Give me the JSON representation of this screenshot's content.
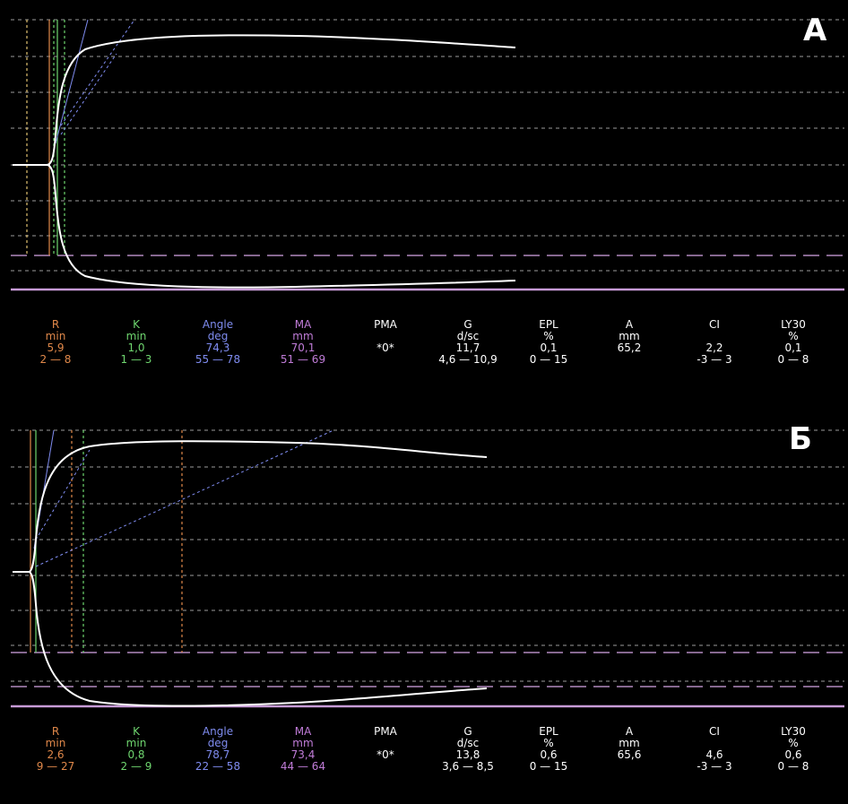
{
  "colors": {
    "R": "#e0884a",
    "K": "#6fd66f",
    "Angle": "#7f8cf0",
    "MA": "#c07cd8",
    "default": "#ffffff",
    "curve": "#ffffff",
    "grid": "#cfcfcf",
    "baseline": "#c79bd6"
  },
  "panels": [
    {
      "label": "А",
      "parameters": [
        {
          "name": "R",
          "unit": "min",
          "value": "5,9",
          "range": "2 — 8",
          "color_key": "R"
        },
        {
          "name": "K",
          "unit": "min",
          "value": "1,0",
          "range": "1 — 3",
          "color_key": "K"
        },
        {
          "name": "Angle",
          "unit": "deg",
          "value": "74,3",
          "range": "55 — 78",
          "color_key": "Angle"
        },
        {
          "name": "MA",
          "unit": "mm",
          "value": "70,1",
          "range": "51 — 69",
          "color_key": "MA"
        },
        {
          "name": "PMA",
          "unit": "",
          "value": "*0*",
          "range": "",
          "color_key": "default"
        },
        {
          "name": "G",
          "unit": "d/sc",
          "value": "11,7",
          "range": "4,6 — 10,9",
          "color_key": "default"
        },
        {
          "name": "EPL",
          "unit": "%",
          "value": "0,1",
          "range": "0 — 15",
          "color_key": "default"
        },
        {
          "name": "A",
          "unit": "mm",
          "value": "65,2",
          "range": "",
          "color_key": "default"
        },
        {
          "name": "CI",
          "unit": "",
          "value": "2,2",
          "range": "-3 — 3",
          "color_key": "default"
        },
        {
          "name": "LY30",
          "unit": "%",
          "value": "0,1",
          "range": "0 — 8",
          "color_key": "default"
        }
      ]
    },
    {
      "label": "Б",
      "parameters": [
        {
          "name": "R",
          "unit": "min",
          "value": "2,6",
          "range": "9 — 27",
          "color_key": "R"
        },
        {
          "name": "K",
          "unit": "min",
          "value": "0,8",
          "range": "2 — 9",
          "color_key": "K"
        },
        {
          "name": "Angle",
          "unit": "deg",
          "value": "78,7",
          "range": "22 — 58",
          "color_key": "Angle"
        },
        {
          "name": "MA",
          "unit": "mm",
          "value": "73,4",
          "range": "44 — 64",
          "color_key": "MA"
        },
        {
          "name": "PMA",
          "unit": "",
          "value": "*0*",
          "range": "",
          "color_key": "default"
        },
        {
          "name": "G",
          "unit": "d/sc",
          "value": "13,8",
          "range": "3,6 — 8,5",
          "color_key": "default"
        },
        {
          "name": "EPL",
          "unit": "%",
          "value": "0,6",
          "range": "0 — 15",
          "color_key": "default"
        },
        {
          "name": "A",
          "unit": "mm",
          "value": "65,6",
          "range": "",
          "color_key": "default"
        },
        {
          "name": "CI",
          "unit": "",
          "value": "4,6",
          "range": "-3 — 3",
          "color_key": "default"
        },
        {
          "name": "LY30",
          "unit": "%",
          "value": "0,6",
          "range": "0 — 8",
          "color_key": "default"
        }
      ]
    }
  ],
  "chart_data": [
    {
      "type": "line",
      "title": "",
      "description_label": "А",
      "series": [],
      "grid": true,
      "shape": "symmetric thromboelastogram tracing",
      "values": {
        "R_min": 5.9,
        "K_min": 1.0,
        "angle_deg": 74.3,
        "MA_mm": 70.1,
        "A_mm": 65.2
      }
    },
    {
      "type": "line",
      "title": "",
      "description_label": "Б",
      "series": [],
      "grid": true,
      "shape": "symmetric thromboelastogram tracing",
      "values": {
        "R_min": 2.6,
        "K_min": 0.8,
        "angle_deg": 78.7,
        "MA_mm": 73.4,
        "A_mm": 65.6
      }
    }
  ]
}
